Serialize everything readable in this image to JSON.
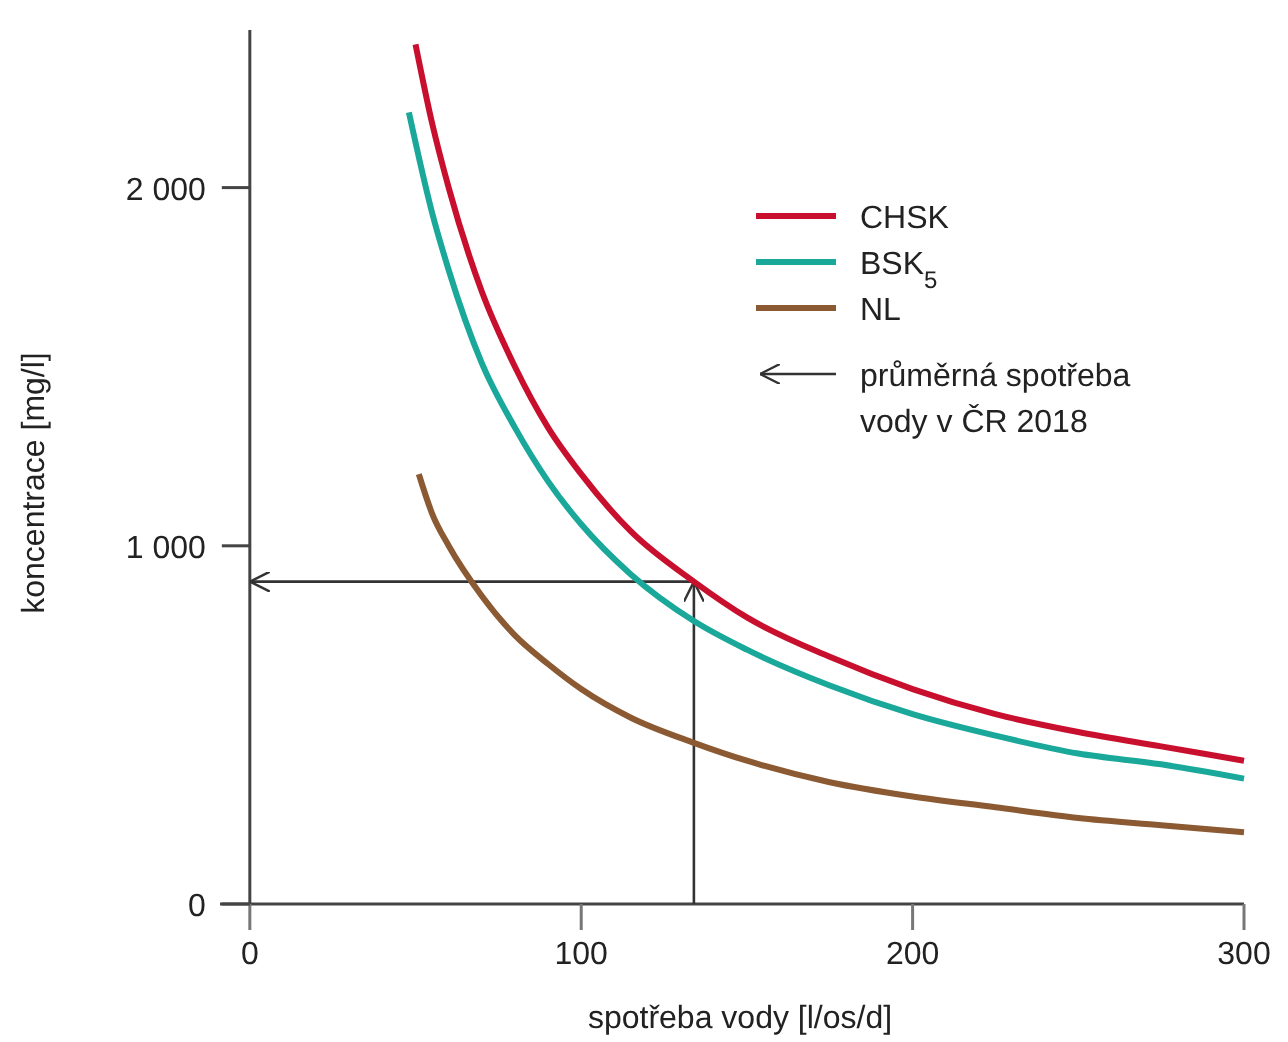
{
  "chart_data": {
    "type": "line",
    "xlabel": "spotřeba vody [l/os/d]",
    "ylabel": "koncentrace [mg/l]",
    "xlim": [
      -9,
      300
    ],
    "ylim": [
      0,
      2440
    ],
    "xticks": [
      0,
      100,
      200,
      300
    ],
    "yticks": [
      0,
      {
        "value": 1000,
        "label": "1 000"
      },
      {
        "value": 2000,
        "label": "2 000"
      }
    ],
    "grid": false,
    "legend": "top right",
    "marker": "none",
    "line_style": "solid",
    "series": [
      {
        "name": "CHSK",
        "color": "#c8102e",
        "x": [
          50,
          55,
          60,
          70,
          80,
          90,
          100,
          115,
          134,
          150,
          175,
          200,
          225,
          250,
          275,
          300
        ],
        "values": [
          2400,
          2180,
          2000,
          1710,
          1500,
          1330,
          1200,
          1040,
          900,
          800,
          690,
          600,
          530,
          480,
          440,
          400
        ]
      },
      {
        "name": "BSK$_{5}$",
        "color": "#1aa89a",
        "x": [
          48,
          55,
          60,
          70,
          80,
          90,
          100,
          115,
          134,
          150,
          175,
          200,
          225,
          250,
          275,
          300
        ],
        "values": [
          2210,
          1930,
          1770,
          1510,
          1330,
          1180,
          1060,
          920,
          790,
          710,
          610,
          530,
          470,
          420,
          390,
          350
        ]
      },
      {
        "name": "NL",
        "color": "#8b5a32",
        "x": [
          51,
          55,
          60,
          70,
          80,
          90,
          100,
          115,
          134,
          150,
          175,
          200,
          225,
          250,
          275,
          300
        ],
        "values": [
          1200,
          1090,
          1000,
          860,
          750,
          670,
          600,
          520,
          450,
          400,
          340,
          300,
          270,
          240,
          220,
          200
        ]
      }
    ],
    "ref_lines": [
      {
        "axis": "x",
        "value": 134,
        "color": "#333333"
      },
      {
        "axis": "y",
        "value": 900,
        "color": "#333333",
        "label": "průměrná spotřeba vody v ČR 2018"
      }
    ]
  }
}
